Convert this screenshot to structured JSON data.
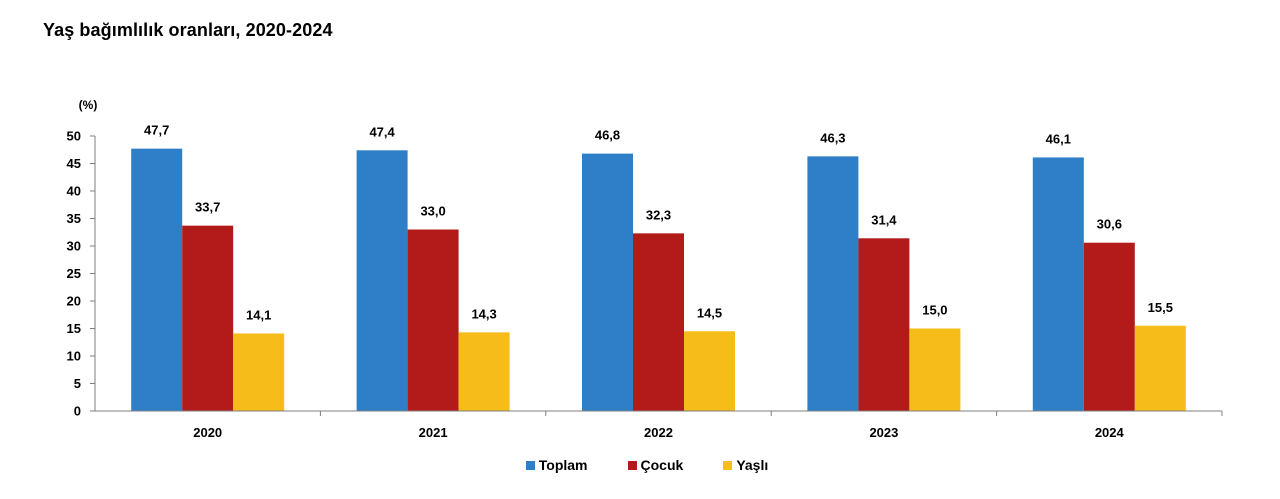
{
  "title": "Yaş bağımlılık oranları, 2020-2024",
  "chart_data": {
    "type": "bar",
    "title": "Yaş bağımlılık oranları, 2020-2024",
    "unit_label": "(%)",
    "categories": [
      "2020",
      "2021",
      "2022",
      "2023",
      "2024"
    ],
    "series": [
      {
        "name": "Toplam",
        "color": "#2e7fc7",
        "values": [
          47.7,
          47.4,
          46.8,
          46.3,
          46.1
        ],
        "labels": [
          "47,7",
          "47,4",
          "46,8",
          "46,3",
          "46,1"
        ]
      },
      {
        "name": "Çocuk",
        "color": "#b31b1b",
        "values": [
          33.7,
          33.0,
          32.3,
          31.4,
          30.6
        ],
        "labels": [
          "33,7",
          "33,0",
          "32,3",
          "31,4",
          "30,6"
        ]
      },
      {
        "name": "Yaşlı",
        "color": "#f6bd1a",
        "values": [
          14.1,
          14.3,
          14.5,
          15.0,
          15.5
        ],
        "labels": [
          "14,1",
          "14,3",
          "14,5",
          "15,0",
          "15,5"
        ]
      }
    ],
    "ylim": [
      0,
      50
    ],
    "yticks": [
      "0",
      "5",
      "10",
      "15",
      "20",
      "25",
      "30",
      "35",
      "40",
      "45",
      "50"
    ],
    "grid": false,
    "legend_position": "bottom"
  }
}
